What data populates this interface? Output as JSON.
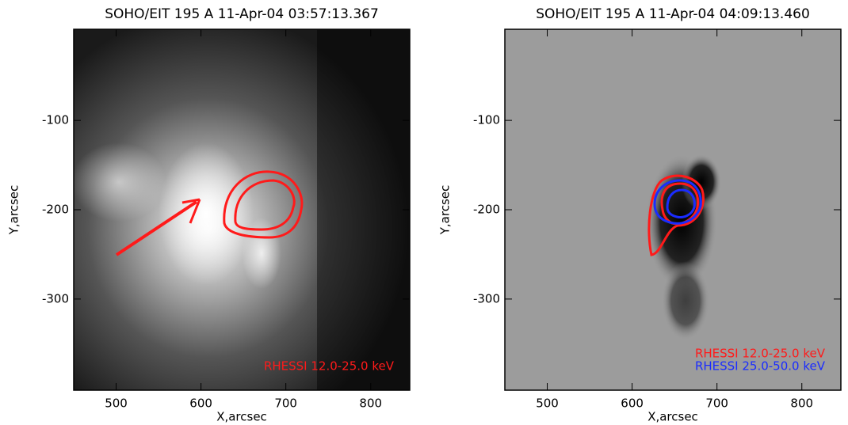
{
  "chart_data": [
    {
      "type": "image",
      "title": "SOHO/EIT 195 A 11-Apr-04 03:57:13.367",
      "xlabel": "X,arcsec",
      "ylabel": "Y,arcsec",
      "xlim": [
        450,
        846
      ],
      "ylim": [
        -402,
        2
      ],
      "xticks": [
        500,
        600,
        700,
        800
      ],
      "yticks": [
        -100,
        -200,
        -300
      ],
      "series": [
        {
          "name": "RHESSI 12.0-25.0 keV",
          "color": "#ff1a1a"
        }
      ]
    },
    {
      "type": "image",
      "title": "SOHO/EIT 195 A 11-Apr-04 04:09:13.460",
      "xlabel": "X,arcsec",
      "ylabel": "Y,arcsec",
      "xlim": [
        450,
        846
      ],
      "ylim": [
        -402,
        2
      ],
      "xticks": [
        500,
        600,
        700,
        800
      ],
      "yticks": [
        -100,
        -200,
        -300
      ],
      "series": [
        {
          "name": "RHESSI 12.0-25.0 keV",
          "color": "#ff1a1a"
        },
        {
          "name": "RHESSI 25.0-50.0 keV",
          "color": "#1a2cff"
        }
      ]
    }
  ]
}
